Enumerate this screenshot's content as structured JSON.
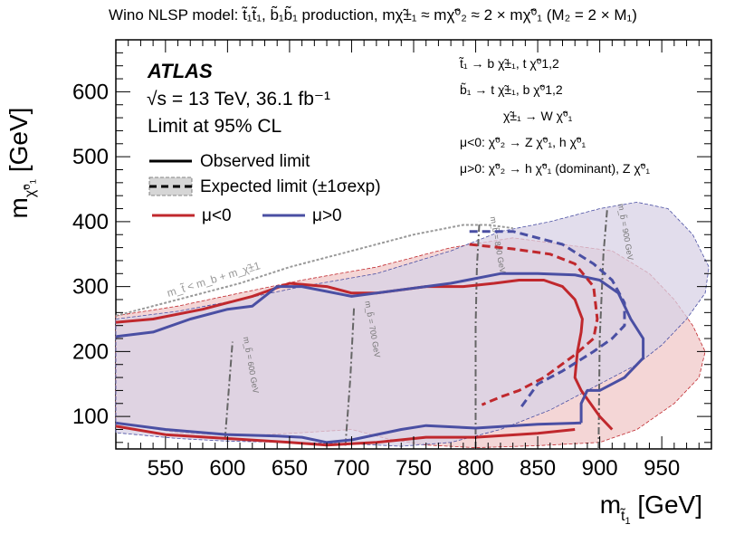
{
  "chart_data": {
    "type": "line",
    "title": "Wino NLSP model: t̃₁t̃₁, b̃₁b̃₁ production, mχ̃±₁ ≈ mχ̃⁰₂ ≈ 2 × mχ̃⁰₁ (M₂ = 2 × M₁)",
    "xlabel": "m_t̃1 [GeV]",
    "ylabel": "m_χ̃01 [GeV]",
    "xlim": [
      510,
      990
    ],
    "ylim": [
      50,
      680
    ],
    "xticks": [
      550,
      600,
      650,
      700,
      750,
      800,
      850,
      900,
      950
    ],
    "yticks": [
      100,
      200,
      300,
      400,
      500,
      600
    ],
    "experiment": "ATLAS",
    "energy_label": "√s = 13 TeV, 36.1 fb⁻¹",
    "cl_label": "Limit at 95% CL",
    "legend": {
      "observed": "Observed limit",
      "expected": "Expected limit (±1σexp)",
      "mu_neg": "μ<0",
      "mu_pos": "μ>0"
    },
    "decays": [
      "t̃₁ → b χ̃±₁, t χ̃⁰1,2",
      "b̃₁ → t χ̃±₁, b χ̃⁰1,2",
      "χ̃±₁ → W χ̃⁰₁",
      "μ<0:  χ̃⁰₂ → Z χ̃⁰₁, h χ̃⁰₁",
      "μ>0:  χ̃⁰₂ → h χ̃⁰₁ (dominant), Z χ̃⁰₁"
    ],
    "kinematic_label": "m_t̃ < m_b + m_χ̃±1",
    "sbottom_lines": [
      {
        "mb": 600,
        "label": "m_b̃ = 600 GeV",
        "x": [
          598,
          601,
          604
        ],
        "y": [
          65,
          140,
          215
        ]
      },
      {
        "mb": 700,
        "label": "m_b̃ = 700 GeV",
        "x": [
          695,
          699,
          702
        ],
        "y": [
          55,
          160,
          270
        ]
      },
      {
        "mb": 800,
        "label": "m_b̃ = 800 GeV",
        "x": [
          800,
          800,
          801,
          803
        ],
        "y": [
          50,
          240,
          330,
          400
        ]
      },
      {
        "mb": 900,
        "label": "m_b̃ = 900 GeV",
        "x": [
          899,
          900,
          903,
          906
        ],
        "y": [
          50,
          220,
          350,
          420
        ]
      }
    ],
    "kinematic_line": {
      "x": [
        510,
        560,
        610,
        650,
        700,
        750,
        790,
        810,
        830
      ],
      "y": [
        255,
        280,
        305,
        330,
        355,
        380,
        395,
        395,
        390
      ]
    },
    "series": [
      {
        "name": "μ<0 observed",
        "color": "#c0282d",
        "style": "solid",
        "x": [
          510,
          540,
          580,
          620,
          650,
          680,
          700,
          720,
          760,
          790,
          815,
          835,
          855,
          870,
          880,
          886,
          885,
          882,
          880,
          885,
          900,
          910
        ],
        "y": [
          245,
          250,
          265,
          285,
          305,
          300,
          290,
          290,
          300,
          300,
          305,
          310,
          310,
          300,
          280,
          250,
          230,
          200,
          160,
          140,
          100,
          80
        ]
      },
      {
        "name": "μ<0 observed (lower)",
        "color": "#c0282d",
        "style": "solid",
        "x": [
          510,
          550,
          600,
          650,
          680,
          720,
          760,
          800,
          850,
          880
        ],
        "y": [
          85,
          72,
          66,
          60,
          56,
          60,
          68,
          68,
          74,
          80
        ]
      },
      {
        "name": "μ>0 observed",
        "color": "#4a4fa3",
        "style": "solid",
        "x": [
          510,
          540,
          570,
          600,
          620,
          640,
          660,
          700,
          740,
          780,
          820,
          850,
          880,
          900,
          915,
          925,
          935,
          935,
          920,
          900,
          890,
          885,
          885
        ],
        "y": [
          223,
          230,
          250,
          265,
          270,
          300,
          300,
          285,
          295,
          305,
          320,
          320,
          318,
          310,
          290,
          250,
          220,
          190,
          160,
          140,
          140,
          120,
          90
        ]
      },
      {
        "name": "μ>0 observed (lower)",
        "color": "#4a4fa3",
        "style": "solid",
        "x": [
          510,
          550,
          600,
          640,
          660,
          680,
          700,
          740,
          760,
          800,
          850,
          885
        ],
        "y": [
          90,
          80,
          72,
          70,
          68,
          60,
          64,
          80,
          86,
          82,
          88,
          90
        ]
      },
      {
        "name": "μ<0 expected",
        "color": "#c0282d",
        "style": "dashed",
        "x": [
          795,
          830,
          860,
          880,
          895,
          898,
          895,
          880,
          855,
          835,
          820,
          805
        ],
        "y": [
          365,
          358,
          350,
          335,
          300,
          250,
          220,
          195,
          160,
          140,
          130,
          118
        ]
      },
      {
        "name": "μ>0 expected",
        "color": "#4a4fa3",
        "style": "dashed",
        "x": [
          795,
          830,
          870,
          895,
          910,
          920,
          920,
          910,
          895,
          870,
          850,
          835
        ],
        "y": [
          385,
          385,
          365,
          335,
          310,
          275,
          240,
          220,
          200,
          170,
          150,
          110
        ]
      },
      {
        "name": "μ<0 expected band",
        "color": "#f0c8c8",
        "style": "band",
        "x": [
          510,
          560,
          610,
          660,
          720,
          780,
          830,
          870,
          910,
          940,
          960,
          975,
          985,
          980,
          960,
          930,
          900,
          850,
          800,
          760,
          730,
          700,
          660,
          610,
          560,
          510
        ],
        "y": [
          255,
          270,
          290,
          310,
          330,
          360,
          375,
          365,
          355,
          320,
          280,
          240,
          200,
          160,
          120,
          80,
          60,
          55,
          52,
          56,
          65,
          80,
          75,
          70,
          75,
          90
        ]
      },
      {
        "name": "μ>0 expected band",
        "color": "#d8d2e6",
        "style": "band",
        "x": [
          510,
          560,
          610,
          660,
          720,
          780,
          820,
          860,
          900,
          930,
          955,
          975,
          988,
          985,
          970,
          950,
          930,
          900,
          860,
          820,
          780,
          740,
          700,
          650,
          600,
          560,
          510
        ],
        "y": [
          250,
          262,
          280,
          300,
          320,
          355,
          385,
          400,
          420,
          430,
          420,
          380,
          330,
          290,
          250,
          210,
          180,
          150,
          110,
          80,
          60,
          54,
          58,
          60,
          62,
          66,
          75
        ]
      }
    ]
  }
}
